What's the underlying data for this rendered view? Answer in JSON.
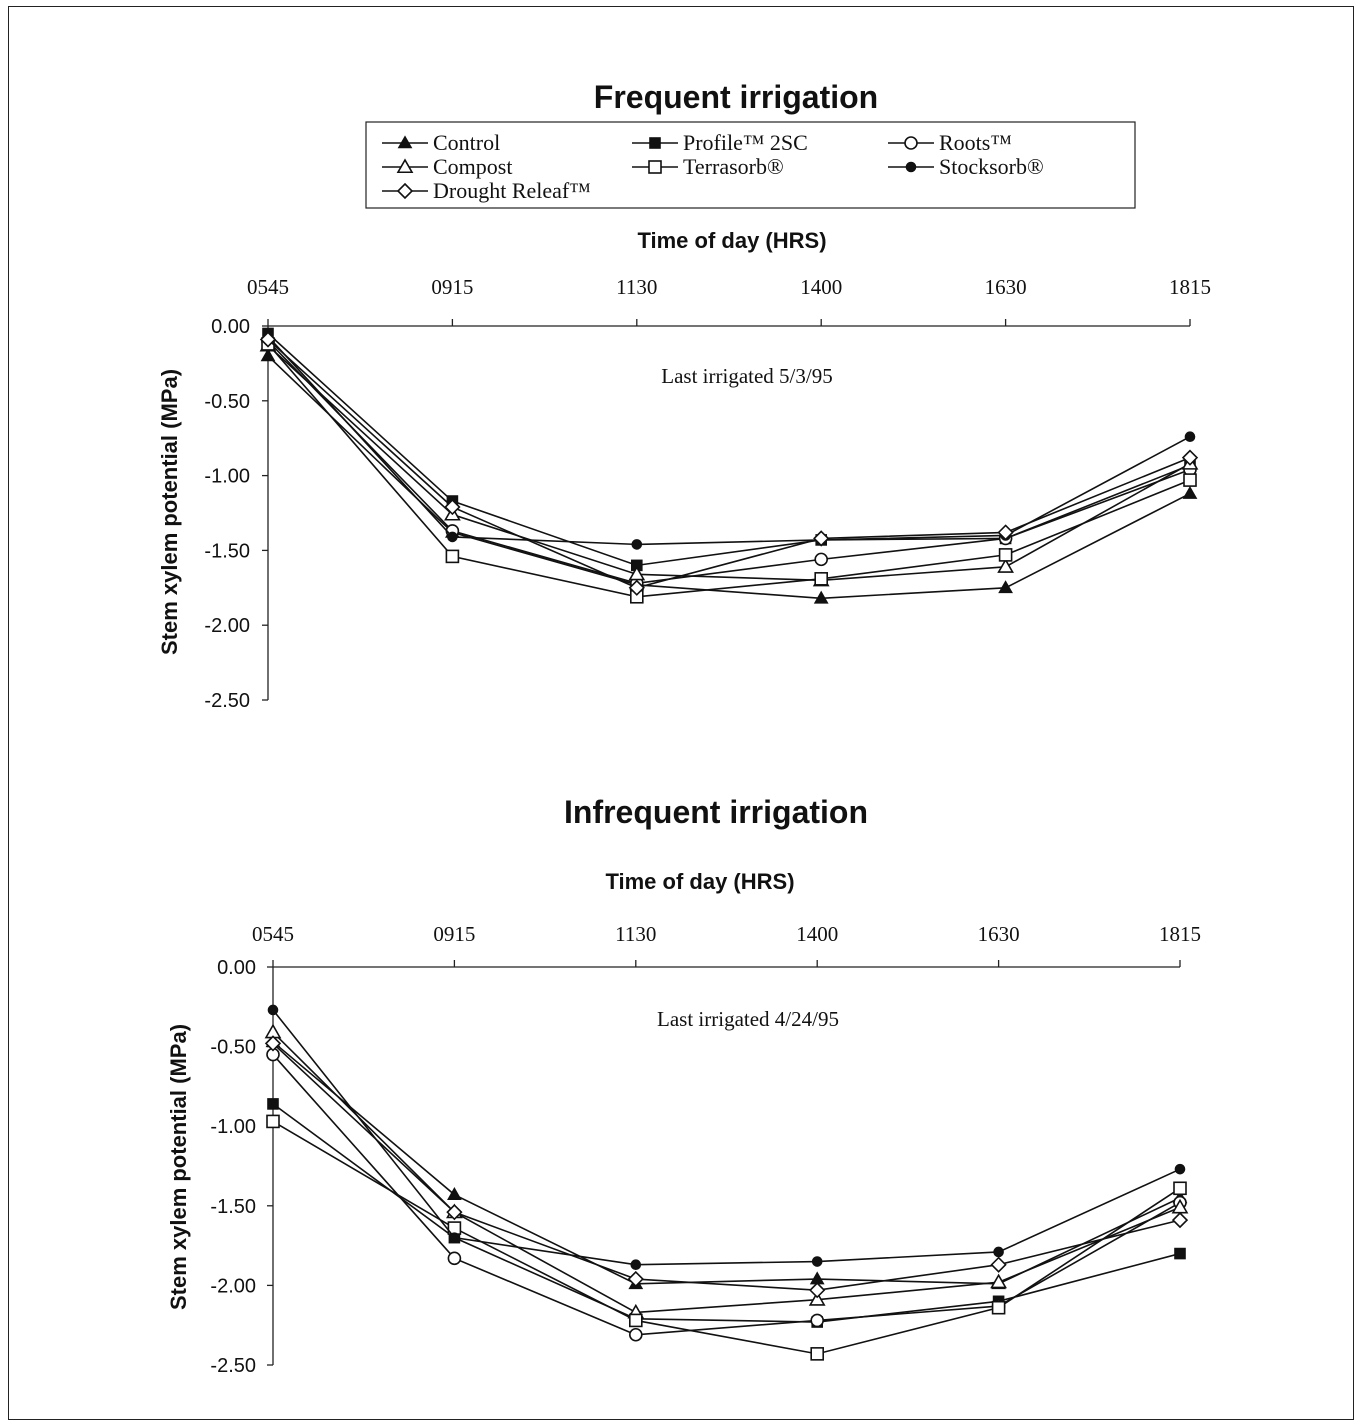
{
  "legend": [
    {
      "name": "Control",
      "marker": "filled-triangle"
    },
    {
      "name": "Profile™ 2SC",
      "marker": "filled-square"
    },
    {
      "name": "Roots™",
      "marker": "open-circle"
    },
    {
      "name": "Compost",
      "marker": "open-triangle"
    },
    {
      "name": "Terrasorb®",
      "marker": "open-square"
    },
    {
      "name": "Stocksorb®",
      "marker": "filled-circle"
    },
    {
      "name": "Drought Releaf™",
      "marker": "open-diamond"
    }
  ],
  "colors": {
    "ink": "#111111",
    "background": "#ffffff"
  },
  "chart_data": [
    {
      "type": "line",
      "title": "Frequent irrigation",
      "xlabel": "Time of day (HRS)",
      "ylabel": "Stem xylem potential (MPa)",
      "annotation": "Last irrigated 5/3/95",
      "categories": [
        "0545",
        "0915",
        "1130",
        "1400",
        "1630",
        "1815"
      ],
      "yticks": [
        "0.00",
        "-0.50",
        "-1.00",
        "-1.50",
        "-2.00",
        "-2.50"
      ],
      "ylim": [
        -2.5,
        0
      ],
      "x_axis_position": "top",
      "series": [
        {
          "name": "Control",
          "values": [
            -0.2,
            -1.38,
            -1.73,
            -1.82,
            -1.75,
            -1.12
          ]
        },
        {
          "name": "Profile™ 2SC",
          "values": [
            -0.05,
            -1.17,
            -1.6,
            -1.43,
            -1.42,
            -0.93
          ]
        },
        {
          "name": "Roots™",
          "values": [
            -0.1,
            -1.37,
            -1.72,
            -1.56,
            -1.42,
            -0.96
          ]
        },
        {
          "name": "Compost",
          "values": [
            -0.13,
            -1.26,
            -1.66,
            -1.7,
            -1.61,
            -0.92
          ]
        },
        {
          "name": "Terrasorb®",
          "values": [
            -0.12,
            -1.54,
            -1.81,
            -1.69,
            -1.53,
            -1.03
          ]
        },
        {
          "name": "Stocksorb®",
          "values": [
            -0.07,
            -1.41,
            -1.46,
            -1.43,
            -1.4,
            -0.74
          ]
        },
        {
          "name": "Drought Releaf™",
          "values": [
            -0.09,
            -1.21,
            -1.75,
            -1.42,
            -1.38,
            -0.88
          ]
        }
      ]
    },
    {
      "type": "line",
      "title": "Infrequent irrigation",
      "xlabel": "Time of day (HRS)",
      "ylabel": "Stem xylem potential (MPa)",
      "annotation": "Last irrigated 4/24/95",
      "categories": [
        "0545",
        "0915",
        "1130",
        "1400",
        "1630",
        "1815"
      ],
      "yticks": [
        "0.00",
        "-0.50",
        "-1.00",
        "-1.50",
        "-2.00",
        "-2.50"
      ],
      "ylim": [
        -2.5,
        0
      ],
      "x_axis_position": "top",
      "series": [
        {
          "name": "Control",
          "values": [
            -0.47,
            -1.43,
            -1.99,
            -1.96,
            -1.99,
            -1.45
          ]
        },
        {
          "name": "Profile™ 2SC",
          "values": [
            -0.86,
            -1.7,
            -2.21,
            -2.23,
            -2.1,
            -1.8
          ]
        },
        {
          "name": "Roots™",
          "values": [
            -0.55,
            -1.83,
            -2.31,
            -2.22,
            -2.13,
            -1.48
          ]
        },
        {
          "name": "Compost",
          "values": [
            -0.41,
            -1.54,
            -2.17,
            -2.09,
            -1.98,
            -1.51
          ]
        },
        {
          "name": "Terrasorb®",
          "values": [
            -0.97,
            -1.64,
            -2.22,
            -2.43,
            -2.14,
            -1.39
          ]
        },
        {
          "name": "Stocksorb®",
          "values": [
            -0.27,
            -1.7,
            -1.87,
            -1.85,
            -1.79,
            -1.27
          ]
        },
        {
          "name": "Drought Releaf™",
          "values": [
            -0.48,
            -1.54,
            -1.96,
            -2.03,
            -1.87,
            -1.59
          ]
        }
      ]
    }
  ]
}
